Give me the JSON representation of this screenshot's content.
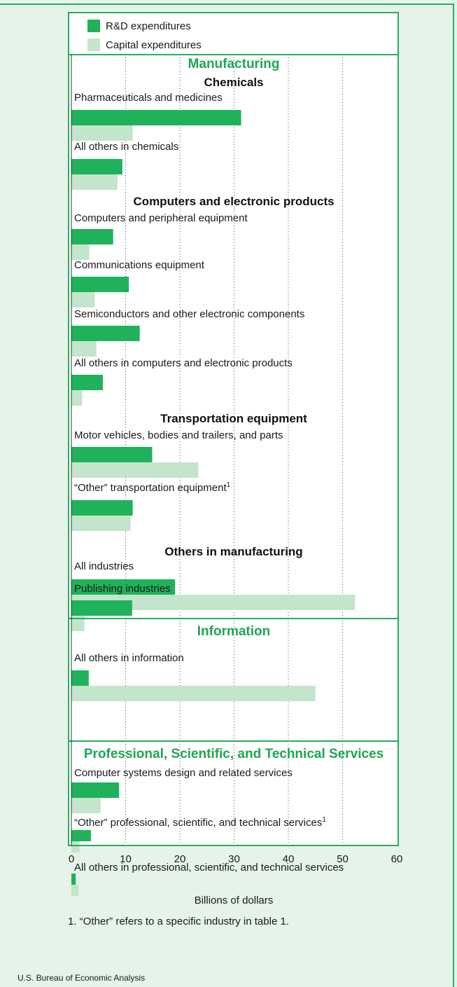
{
  "chart_data": {
    "type": "bar",
    "orientation": "horizontal",
    "series": [
      {
        "name": "R&D expenditures",
        "color": "#1fb25a"
      },
      {
        "name": "Capital expenditures",
        "color": "#c3e5cc"
      }
    ],
    "sections": [
      {
        "title": "Manufacturing",
        "groups": [
          {
            "title": "Chemicals",
            "items": [
              {
                "label": "Pharmaceuticals and medicines",
                "superscript": "",
                "rd": 31.3,
                "capital": 11.3
              },
              {
                "label": "All others in chemicals",
                "superscript": "",
                "rd": 9.4,
                "capital": 8.5
              }
            ]
          },
          {
            "title": "Computers and electronic products",
            "items": [
              {
                "label": "Computers and peripheral equipment",
                "superscript": "",
                "rd": 7.7,
                "capital": 3.3
              },
              {
                "label": "Communications equipment",
                "superscript": "",
                "rd": 10.6,
                "capital": 4.3
              },
              {
                "label": "Semiconductors and other electronic components",
                "superscript": "",
                "rd": 12.6,
                "capital": 4.6
              },
              {
                "label": "All others in computers and electronic products",
                "superscript": "",
                "rd": 5.8,
                "capital": 2.0
              }
            ]
          },
          {
            "title": "Transportation equipment",
            "items": [
              {
                "label": "Motor vehicles, bodies and trailers, and parts",
                "superscript": "",
                "rd": 14.9,
                "capital": 23.4
              },
              {
                "label": "“Other” transportation equipment",
                "superscript": "1",
                "rd": 11.3,
                "capital": 10.9
              }
            ]
          },
          {
            "title": "Others in manufacturing",
            "items": [
              {
                "label": "All industries",
                "superscript": "",
                "rd": 19.1,
                "capital": 52.3
              }
            ]
          }
        ]
      },
      {
        "title": "Information",
        "groups": [
          {
            "title": "",
            "items": [
              {
                "label": "Publishing industries",
                "superscript": "",
                "rd": 11.2,
                "capital": 2.4
              },
              {
                "label": "All others in information",
                "superscript": "",
                "rd": 3.2,
                "capital": 45.0
              }
            ]
          }
        ]
      },
      {
        "title": "Professional, Scientific, and Technical Services",
        "groups": [
          {
            "title": "",
            "items": [
              {
                "label": "Computer systems design and related services",
                "superscript": "",
                "rd": 8.8,
                "capital": 5.4
              },
              {
                "label": "“Other” professional, scientific, and technical services",
                "superscript": "1",
                "rd": 3.6,
                "capital": 1.5
              },
              {
                "label": "All others in professional, scientific, and technical services",
                "superscript": "",
                "rd": 0.8,
                "capital": 1.3
              }
            ]
          }
        ]
      }
    ],
    "xlim": [
      0,
      60
    ],
    "xticks": [
      0,
      10,
      20,
      30,
      40,
      50,
      60
    ],
    "xlabel": "Billions of dollars",
    "grid": "vertical dotted",
    "legend_position": "top"
  },
  "footnote": "1. “Other” refers to a specific industry in table 1.",
  "source": "U.S. Bureau of Economic Analysis",
  "colors": {
    "accent": "#27ae5e",
    "background": "#e5f3e9"
  }
}
